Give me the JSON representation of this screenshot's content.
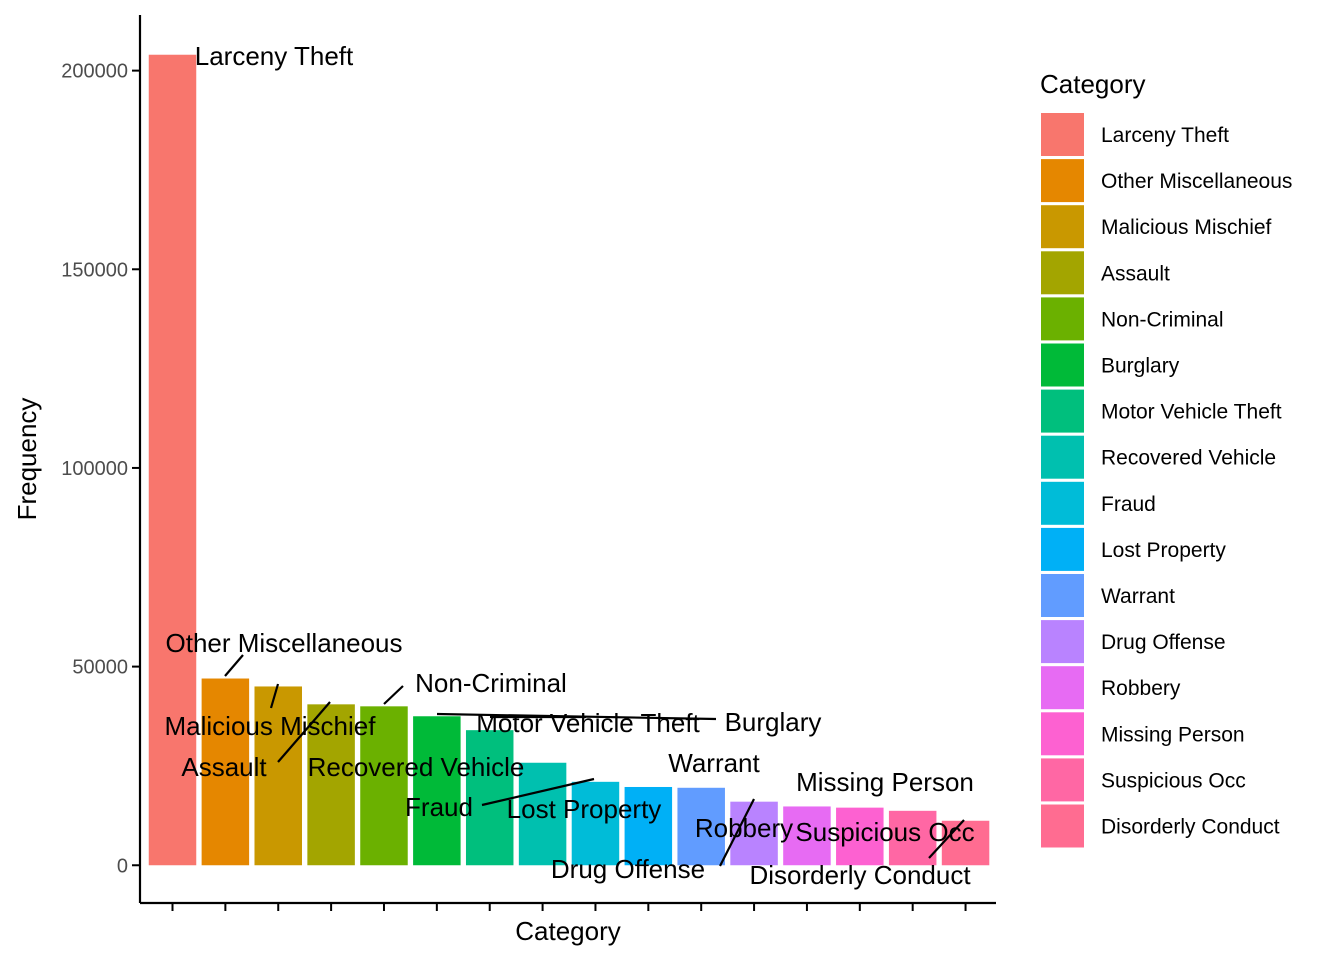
{
  "chart_data": {
    "type": "bar",
    "xlabel": "Category",
    "ylabel": "Frequency",
    "ylim": [
      -9500,
      214000
    ],
    "y_ticks": [
      0,
      50000,
      100000,
      150000,
      200000
    ],
    "y_tick_labels": [
      "0",
      "50000",
      "100000",
      "150000",
      "200000"
    ],
    "categories": [
      "Larceny Theft",
      "Other Miscellaneous",
      "Malicious Mischief",
      "Assault",
      "Non-Criminal",
      "Burglary",
      "Motor Vehicle Theft",
      "Recovered Vehicle",
      "Fraud",
      "Lost Property",
      "Warrant",
      "Drug Offense",
      "Robbery",
      "Missing Person",
      "Suspicious Occ",
      "Disorderly Conduct"
    ],
    "values": [
      204000,
      47000,
      45000,
      40500,
      40000,
      37500,
      34000,
      25800,
      21000,
      19700,
      19500,
      16000,
      14800,
      14500,
      13700,
      11200
    ],
    "colors": [
      "#F8766D",
      "#E58700",
      "#C99800",
      "#A3A500",
      "#6BB100",
      "#00BA38",
      "#00BF7D",
      "#00C0AF",
      "#00BCD8",
      "#00B0F6",
      "#619CFF",
      "#B983FF",
      "#E76BF3",
      "#FD61D1",
      "#FF67A4",
      "#FF6C91"
    ],
    "legend_title": "Category",
    "legend_placement": "right",
    "grid": false
  }
}
